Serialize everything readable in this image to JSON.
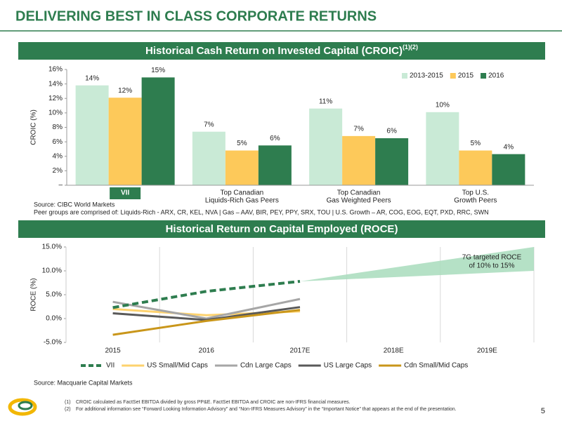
{
  "page_title": "DELIVERING BEST IN CLASS CORPORATE RETURNS",
  "chart_data": [
    {
      "type": "bar",
      "title": "Historical Cash Return on Invested Capital (CROIC)",
      "title_superscript": "(1)(2)",
      "ylabel": "CROIC (%)",
      "categories": [
        [
          "VII"
        ],
        [
          "Top Canadian",
          "Liquids-Rich Gas Peers"
        ],
        [
          "Top Canadian",
          "Gas Weighted Peers"
        ],
        [
          "Top U.S.",
          "Growth Peers"
        ]
      ],
      "highlight_index": 0,
      "series": [
        {
          "name": "2013-2015",
          "color": "#c9ead6",
          "values": [
            13.8,
            7.4,
            10.6,
            10.1
          ],
          "value_labels": [
            "14%",
            "7%",
            "11%",
            "10%"
          ]
        },
        {
          "name": "2015",
          "color": "#fdc95a",
          "values": [
            12.1,
            4.8,
            6.8,
            4.8
          ],
          "value_labels": [
            "12%",
            "5%",
            "7%",
            "5%"
          ]
        },
        {
          "name": "2016",
          "color": "#2e7d4f",
          "values": [
            14.9,
            5.5,
            6.5,
            4.3
          ],
          "value_labels": [
            "15%",
            "6%",
            "6%",
            "4%"
          ]
        }
      ],
      "ylim": [
        0,
        16
      ],
      "yticks": [
        {
          "value": 0,
          "label": "–"
        },
        {
          "value": 2,
          "label": "2%"
        },
        {
          "value": 4,
          "label": "4%"
        },
        {
          "value": 6,
          "label": "6%"
        },
        {
          "value": 8,
          "label": "8%"
        },
        {
          "value": 10,
          "label": "10%"
        },
        {
          "value": 12,
          "label": "12%"
        },
        {
          "value": 14,
          "label": "14%"
        },
        {
          "value": 16,
          "label": "16%"
        }
      ],
      "legend": "top-right",
      "source": "Source: CIBC World Markets",
      "note": "Peer groups are comprised of: Liquids-Rich - ARX, CR, KEL, NVA | Gas – AAV, BIR, PEY, PPY, SRX, TOU |  U.S. Growth – AR, COG, EOG, EQT, PXD, RRC, SWN"
    },
    {
      "type": "line",
      "title": "Historical Return on Capital Employed (ROCE)",
      "ylabel": "ROCE (%)",
      "categories": [
        "2015",
        "2016",
        "2017E",
        "2018E",
        "2019E"
      ],
      "series": [
        {
          "name": "VII",
          "color": "#2e7d4f",
          "dashed": true,
          "values": [
            2.3,
            5.7,
            7.8,
            null,
            null
          ]
        },
        {
          "name": "US Small/Mid Caps",
          "color": "#fdd26e",
          "values": [
            2.0,
            0.7,
            1.5,
            null,
            null
          ]
        },
        {
          "name": "Cdn Large Caps",
          "color": "#a6a6a6",
          "values": [
            3.5,
            0.0,
            4.1,
            null,
            null
          ]
        },
        {
          "name": "US Large Caps",
          "color": "#595959",
          "values": [
            1.1,
            -0.3,
            2.4,
            null,
            null
          ]
        },
        {
          "name": "Cdn Small/Mid Caps",
          "color": "#c9961a",
          "values": [
            -3.4,
            -0.5,
            1.8,
            null,
            null
          ]
        }
      ],
      "target_range": [
        10,
        15
      ],
      "target_color": "#a8dcbc",
      "annotation": [
        "7G targeted ROCE",
        "of 10% to 15%"
      ],
      "ylim": [
        -5,
        15
      ],
      "yticks": [
        {
          "value": -5,
          "label": "-5.0%"
        },
        {
          "value": 0,
          "label": "0.0%"
        },
        {
          "value": 5,
          "label": "5.0%"
        },
        {
          "value": 10,
          "label": "10.0%"
        },
        {
          "value": 15,
          "label": "15.0%"
        }
      ],
      "grid": true,
      "legend": "bottom",
      "source": "Source: Macquarie Capital Markets"
    }
  ],
  "footnotes": [
    {
      "mark": "(1)",
      "text": "CROIC calculated as FactSet EBITDA divided by gross PP&E. FactSet EBITDA and CROIC are non-IFRS financial measures."
    },
    {
      "mark": "(2)",
      "text": "For additional information see “Forward Looking Information Advisory” and “Non-IFRS Measures Advisory” in the “Important Notice” that appears at the end of the presentation."
    }
  ],
  "page_number": "5"
}
